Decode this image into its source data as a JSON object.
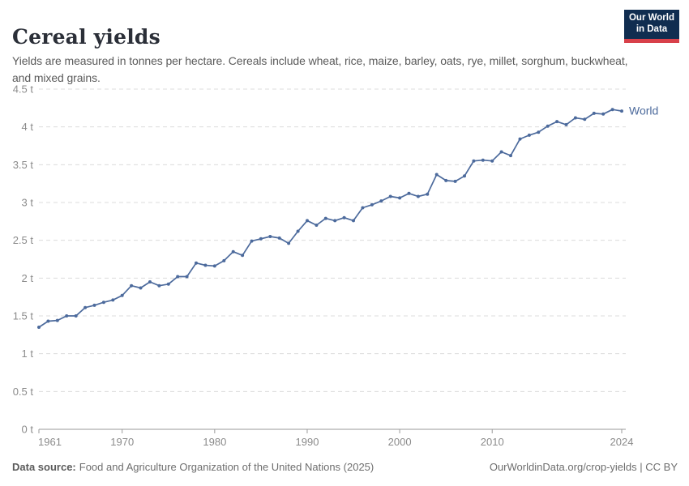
{
  "header": {
    "title": "Cereal yields",
    "subtitle": "Yields are measured in tonnes per hectare. Cereals include wheat, rice, maize, barley, oats, rye, millet, sorghum, buckwheat, and mixed grains.",
    "logo": {
      "line1": "Our World",
      "line2": "in Data"
    }
  },
  "chart_data": {
    "type": "line",
    "title": "Cereal yields",
    "xlabel": "",
    "ylabel": "",
    "unit": "t",
    "xlim": [
      1961,
      2024
    ],
    "ylim": [
      0,
      4.5
    ],
    "grid": "horizontal-dashed",
    "legend_position": "end-of-line",
    "x_ticks": [
      1961,
      1970,
      1980,
      1990,
      2000,
      2010,
      2024
    ],
    "y_ticks": [
      {
        "v": 0,
        "label": "0 t"
      },
      {
        "v": 0.5,
        "label": "0.5 t"
      },
      {
        "v": 1,
        "label": "1 t"
      },
      {
        "v": 1.5,
        "label": "1.5 t"
      },
      {
        "v": 2,
        "label": "2 t"
      },
      {
        "v": 2.5,
        "label": "2.5 t"
      },
      {
        "v": 3,
        "label": "3 t"
      },
      {
        "v": 3.5,
        "label": "3.5 t"
      },
      {
        "v": 4,
        "label": "4 t"
      },
      {
        "v": 4.5,
        "label": "4.5 t"
      }
    ],
    "series": [
      {
        "name": "World",
        "color": "#4C6A9C",
        "years": [
          1961,
          1962,
          1963,
          1964,
          1965,
          1966,
          1967,
          1968,
          1969,
          1970,
          1971,
          1972,
          1973,
          1974,
          1975,
          1976,
          1977,
          1978,
          1979,
          1980,
          1981,
          1982,
          1983,
          1984,
          1985,
          1986,
          1987,
          1988,
          1989,
          1990,
          1991,
          1992,
          1993,
          1994,
          1995,
          1996,
          1997,
          1998,
          1999,
          2000,
          2001,
          2002,
          2003,
          2004,
          2005,
          2006,
          2007,
          2008,
          2009,
          2010,
          2011,
          2012,
          2013,
          2014,
          2015,
          2016,
          2017,
          2018,
          2019,
          2020,
          2021,
          2022,
          2023,
          2024
        ],
        "values": [
          1.35,
          1.43,
          1.44,
          1.5,
          1.5,
          1.61,
          1.64,
          1.68,
          1.71,
          1.77,
          1.9,
          1.87,
          1.95,
          1.9,
          1.92,
          2.02,
          2.02,
          2.2,
          2.17,
          2.16,
          2.23,
          2.35,
          2.3,
          2.49,
          2.52,
          2.55,
          2.53,
          2.46,
          2.62,
          2.76,
          2.7,
          2.79,
          2.76,
          2.8,
          2.76,
          2.93,
          2.97,
          3.02,
          3.08,
          3.06,
          3.12,
          3.08,
          3.11,
          3.37,
          3.29,
          3.28,
          3.35,
          3.55,
          3.56,
          3.55,
          3.67,
          3.62,
          3.84,
          3.89,
          3.93,
          4.01,
          4.07,
          4.03,
          4.12,
          4.1,
          4.18,
          4.17,
          4.23,
          4.21
        ]
      }
    ]
  },
  "colors": {
    "accent_line": "#4C6A9C",
    "logo_bg": "#102d50",
    "logo_bar": "#d8404a",
    "grid": "#dcdcdc",
    "axis": "#9a9a9a",
    "tick_label": "#8b8b8b"
  },
  "footer": {
    "source_label": "Data source:",
    "source_text": "Food and Agriculture Organization of the United Nations (2025)",
    "credit": "OurWorldinData.org/crop-yields | CC BY"
  }
}
